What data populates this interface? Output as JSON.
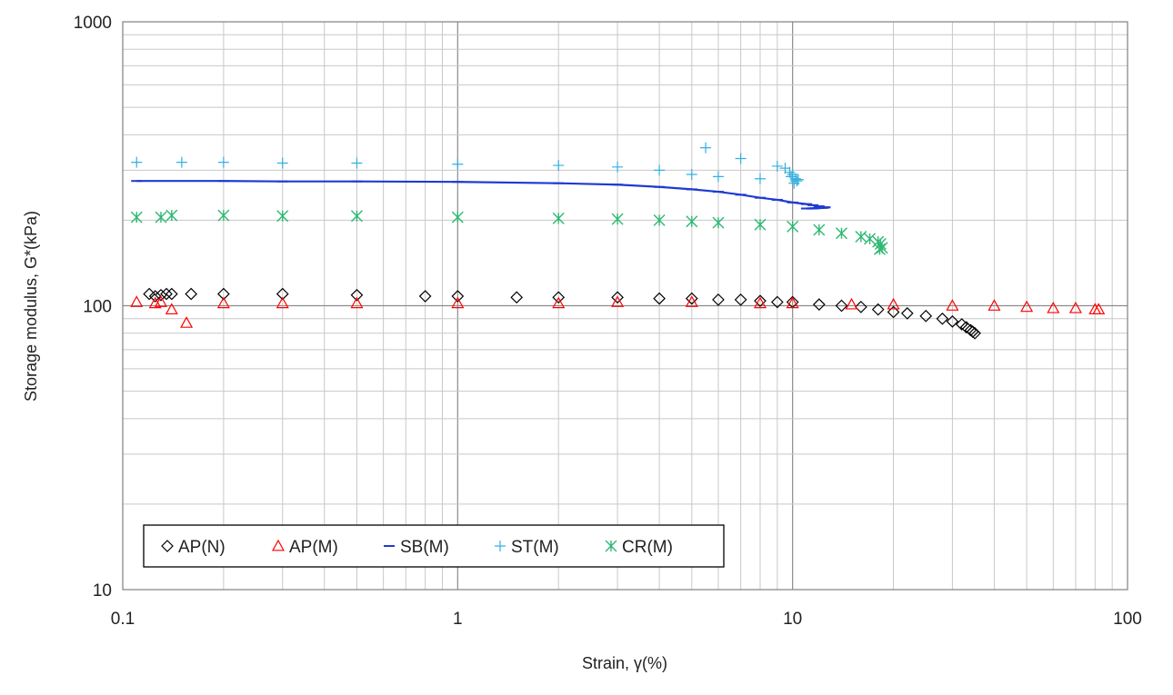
{
  "chart_data": {
    "type": "scatter",
    "x_scale": "log",
    "y_scale": "log",
    "xlabel": "Strain, γ(%)",
    "ylabel": "Storage modulus, G*(kPa)",
    "xlim": [
      0.1,
      100
    ],
    "ylim": [
      10,
      1000
    ],
    "x_tick_labels": [
      "0.1",
      "1",
      "10",
      "100"
    ],
    "y_tick_labels": [
      "10",
      "100",
      "1000"
    ],
    "grid": true,
    "legend_position": "bottom-left",
    "series": [
      {
        "name": "AP(N)",
        "marker": "diamond",
        "color": "#000000",
        "x": [
          0.12,
          0.125,
          0.13,
          0.135,
          0.14,
          0.16,
          0.2,
          0.3,
          0.5,
          0.8,
          1.0,
          1.5,
          2,
          3,
          4,
          5,
          6,
          7,
          8,
          9,
          10,
          12,
          14,
          16,
          18,
          20,
          22,
          25,
          28,
          30,
          32,
          33,
          34,
          34.5,
          35
        ],
        "y": [
          110,
          108,
          109,
          110,
          110,
          110,
          110,
          110,
          109,
          108,
          108,
          107,
          107,
          107,
          106,
          106,
          105,
          105,
          104,
          103,
          103,
          101,
          100,
          99,
          97,
          95,
          94,
          92,
          90,
          88,
          86,
          84,
          82,
          81,
          80
        ]
      },
      {
        "name": "AP(M)",
        "marker": "triangle",
        "color": "#ff0000",
        "x": [
          0.11,
          0.125,
          0.13,
          0.14,
          0.155,
          0.2,
          0.3,
          0.5,
          1,
          2,
          3,
          5,
          8,
          10,
          15,
          20,
          30,
          40,
          50,
          60,
          70,
          80,
          82
        ],
        "y": [
          103,
          102,
          103,
          97,
          87,
          102,
          102,
          102,
          102,
          102,
          103,
          103,
          102,
          102,
          101,
          101,
          100,
          100,
          99,
          98,
          98,
          97,
          97
        ]
      },
      {
        "name": "SB(M)",
        "marker": "dash",
        "color": "#1f3bd1",
        "x": [
          0.11,
          0.2,
          0.3,
          0.5,
          1,
          2,
          3,
          4,
          5,
          6,
          7,
          8,
          9,
          10,
          11,
          11.5,
          12,
          12.3,
          12.5,
          12.3,
          11.5,
          11,
          12,
          12.5
        ],
        "y": [
          275,
          275,
          274,
          274,
          273,
          270,
          267,
          262,
          257,
          252,
          246,
          240,
          236,
          231,
          228,
          226,
          224,
          222,
          222,
          221,
          220,
          220,
          221,
          222
        ]
      },
      {
        "name": "ST(M)",
        "marker": "plus",
        "color": "#33b0e0",
        "x": [
          0.11,
          0.15,
          0.2,
          0.3,
          0.5,
          1,
          2,
          3,
          4,
          5,
          5.5,
          6,
          7,
          8,
          9,
          9.5,
          9.8,
          10,
          10.2,
          10.3,
          10.1,
          9.9,
          10.4
        ],
        "y": [
          320,
          320,
          320,
          318,
          318,
          315,
          312,
          308,
          300,
          290,
          360,
          285,
          330,
          280,
          310,
          305,
          295,
          290,
          280,
          275,
          270,
          285,
          278
        ]
      },
      {
        "name": "CR(M)",
        "marker": "asterisk",
        "color": "#2eb872",
        "x": [
          0.11,
          0.13,
          0.14,
          0.2,
          0.3,
          0.5,
          1,
          2,
          3,
          4,
          5,
          6,
          8,
          10,
          12,
          14,
          16,
          17,
          18,
          18.3,
          18.5,
          18.2
        ],
        "y": [
          205,
          205,
          208,
          208,
          207,
          207,
          205,
          203,
          202,
          200,
          198,
          196,
          193,
          190,
          185,
          180,
          175,
          172,
          168,
          165,
          160,
          158
        ]
      }
    ]
  }
}
